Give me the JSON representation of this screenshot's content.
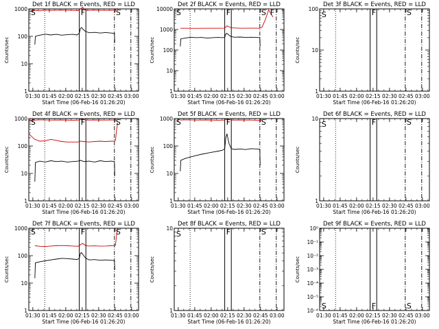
{
  "chart_data": {
    "type": "line",
    "x_ticks": [
      "01:30",
      "01:45",
      "02:00",
      "02:15",
      "02:30",
      "02:45",
      "03:00"
    ],
    "xlabel": "Start Time (06-Feb-16 01:26:20)",
    "ylabel": "Counts/sec",
    "y_scale": "log",
    "marker_times_min": {
      "dotted": 14.5,
      "solid_1": 46,
      "solid_2": 52,
      "dash_1": 78,
      "dash_2": 93
    },
    "panels": [
      {
        "title": "Det 1f BLACK = Events, RED = LLD",
        "ylim": [
          1,
          1000
        ],
        "y_ticks": [
          "1",
          "10",
          "100",
          "1000"
        ],
        "flags": [
          {
            "label": "S",
            "t": 1.5
          },
          {
            "label": "F",
            "t": 47
          },
          {
            "label": "S",
            "t": 79
          }
        ],
        "series": [
          {
            "color": "#cc0000",
            "t": [
              0,
              5,
              10,
              15,
              20,
              30,
              40,
              45,
              47,
              49,
              52,
              60,
              70,
              78,
              79,
              80,
              81
            ],
            "v": [
              800,
              880,
              850,
              900,
              880,
              900,
              880,
              860,
              1000,
              1150,
              880,
              900,
              880,
              890,
              900,
              1000,
              1050
            ]
          },
          {
            "color": "#000000",
            "t": [
              5.5,
              6,
              10,
              15,
              20,
              25,
              30,
              35,
              40,
              44,
              46,
              47,
              48,
              50,
              52,
              55,
              60,
              65,
              70,
              75,
              78,
              78.3
            ],
            "v": [
              50,
              100,
              110,
              120,
              112,
              118,
              110,
              115,
              118,
              112,
              130,
              190,
              210,
              170,
              150,
              135,
              140,
              132,
              138,
              132,
              128,
              60
            ]
          }
        ]
      },
      {
        "title": "Det 2f BLACK = Events, RED = LLD",
        "ylim": [
          1,
          10000
        ],
        "y_ticks": [
          "1",
          "10",
          "100",
          "1000",
          "10000"
        ],
        "flags": [
          {
            "label": "S",
            "t": 1.5
          },
          {
            "label": "F",
            "t": 47
          },
          {
            "label": "S",
            "t": 79
          },
          {
            "label": "F",
            "t": 87
          }
        ],
        "series": [
          {
            "color": "#cc0000",
            "t": [
              5.5,
              10,
              20,
              30,
              40,
              46,
              48,
              52,
              60,
              70,
              78,
              80,
              83,
              86,
              88,
              90
            ],
            "v": [
              1150,
              1150,
              1140,
              1150,
              1150,
              1160,
              1500,
              1200,
              1150,
              1160,
              1150,
              1300,
              3000,
              9000,
              6000,
              4000
            ]
          },
          {
            "color": "#000000",
            "t": [
              5.5,
              6,
              10,
              15,
              20,
              25,
              30,
              35,
              40,
              44,
              46,
              47,
              48,
              50,
              52,
              55,
              60,
              65,
              70,
              75,
              78,
              78.3
            ],
            "v": [
              150,
              350,
              380,
              420,
              400,
              410,
              380,
              400,
              410,
              400,
              420,
              600,
              650,
              520,
              450,
              420,
              430,
              410,
              420,
              410,
              400,
              150
            ]
          }
        ]
      },
      {
        "title": "Det 3f BLACK = Events, RED = LLD",
        "ylim": [
          1,
          100
        ],
        "y_ticks": [
          "1",
          "10",
          "100"
        ],
        "flags": [
          {
            "label": "S",
            "t": 1.5
          },
          {
            "label": "F",
            "t": 47
          },
          {
            "label": "S",
            "t": 79
          }
        ],
        "series": []
      },
      {
        "title": "Det 4f BLACK = Events, RED = LLD",
        "ylim": [
          1,
          1000
        ],
        "y_ticks": [
          "1",
          "10",
          "100",
          "1000"
        ],
        "flags": [
          {
            "label": "S",
            "t": 1.5
          },
          {
            "label": "F",
            "t": 47
          },
          {
            "label": "S",
            "t": 79
          }
        ],
        "series": [
          {
            "color": "#cc0000",
            "t": [
              0,
              5,
              10,
              15,
              20,
              25,
              30,
              35,
              40,
              45,
              47,
              50,
              55,
              60,
              65,
              70,
              75,
              78,
              79,
              80,
              81
            ],
            "v": [
              280,
              180,
              150,
              155,
              175,
              160,
              145,
              140,
              140,
              140,
              150,
              145,
              140,
              145,
              150,
              145,
              150,
              150,
              160,
              400,
              700
            ]
          },
          {
            "color": "#cc0000",
            "t": [
              0,
              10,
              20,
              30,
              40,
              46,
              48,
              52,
              60,
              70,
              78,
              80
            ],
            "v": [
              850,
              900,
              880,
              890,
              870,
              880,
              950,
              880,
              890,
              880,
              890,
              900
            ]
          },
          {
            "color": "#000000",
            "t": [
              5.5,
              6,
              10,
              15,
              20,
              25,
              30,
              35,
              40,
              45,
              47,
              50,
              55,
              60,
              65,
              70,
              75,
              78,
              78.3
            ],
            "v": [
              5,
              25,
              28,
              26,
              29,
              27,
              28,
              26,
              27,
              28,
              30,
              27,
              28,
              26,
              29,
              27,
              28,
              27,
              8
            ]
          }
        ]
      },
      {
        "title": "Det 5f BLACK = Events, RED = LLD",
        "ylim": [
          1,
          1000
        ],
        "y_ticks": [
          "1",
          "10",
          "100",
          "1000"
        ],
        "flags": [
          {
            "label": "S",
            "t": 1.5
          },
          {
            "label": "F",
            "t": 47
          },
          {
            "label": "S",
            "t": 79
          }
        ],
        "series": [
          {
            "color": "#cc0000",
            "t": [
              5.5,
              10,
              20,
              30,
              40,
              46,
              48,
              52,
              60,
              70,
              78,
              80
            ],
            "v": [
              880,
              900,
              880,
              890,
              870,
              880,
              950,
              880,
              890,
              880,
              860,
              900
            ]
          },
          {
            "color": "#000000",
            "t": [
              5.5,
              6,
              10,
              15,
              20,
              25,
              30,
              35,
              40,
              44,
              46,
              47,
              48,
              50,
              52,
              55,
              60,
              65,
              70,
              75,
              78,
              78.3
            ],
            "v": [
              12,
              30,
              35,
              40,
              45,
              50,
              55,
              60,
              65,
              70,
              80,
              200,
              280,
              120,
              80,
              75,
              78,
              74,
              80,
              78,
              76,
              20
            ]
          }
        ]
      },
      {
        "title": "Det 6f BLACK = Events, RED = LLD",
        "ylim": [
          1,
          10
        ],
        "y_ticks": [
          "1",
          "10"
        ],
        "flags": [
          {
            "label": "S",
            "t": 1.5
          },
          {
            "label": "F",
            "t": 47
          },
          {
            "label": "S",
            "t": 79
          }
        ],
        "series": []
      },
      {
        "title": "Det 7f BLACK = Events, RED = LLD",
        "ylim": [
          1,
          1000
        ],
        "y_ticks": [
          "1",
          "10",
          "100",
          "1000"
        ],
        "flags": [
          {
            "label": "S",
            "t": 1.5
          },
          {
            "label": "F",
            "t": 47
          },
          {
            "label": "S",
            "t": 79
          }
        ],
        "series": [
          {
            "color": "#cc0000",
            "t": [
              5.5,
              10,
              15,
              20,
              25,
              30,
              35,
              40,
              45,
              47,
              49,
              52,
              55,
              60,
              65,
              70,
              75,
              78,
              79,
              80,
              81
            ],
            "v": [
              230,
              220,
              215,
              225,
              230,
              235,
              230,
              225,
              220,
              250,
              280,
              230,
              225,
              228,
              222,
              225,
              230,
              235,
              240,
              600,
              1000
            ]
          },
          {
            "color": "#000000",
            "t": [
              5.5,
              6,
              10,
              15,
              20,
              25,
              30,
              35,
              40,
              44,
              46,
              47,
              48,
              50,
              52,
              55,
              60,
              65,
              70,
              75,
              78,
              78.3
            ],
            "v": [
              15,
              55,
              60,
              65,
              70,
              75,
              80,
              78,
              75,
              72,
              80,
              120,
              130,
              100,
              80,
              70,
              72,
              68,
              70,
              68,
              66,
              30
            ]
          }
        ]
      },
      {
        "title": "Det 8f BLACK = Events, RED = LLD",
        "ylim": [
          1,
          10
        ],
        "y_ticks": [
          "1",
          "10"
        ],
        "flags": [
          {
            "label": "S",
            "t": 1.5
          },
          {
            "label": "F",
            "t": 47
          },
          {
            "label": "S",
            "t": 79
          }
        ],
        "series": []
      },
      {
        "title": "Det 9f BLACK = Events, RED = LLD",
        "ylim": [
          1e-06,
          1
        ],
        "y_ticks": [
          "10⁻⁶",
          "10⁻⁵",
          "10⁻⁴",
          "10⁻³",
          "10⁻²",
          "10⁻¹",
          "10⁰"
        ],
        "flags": [
          {
            "label": "S",
            "t": 1.5
          },
          {
            "label": "F",
            "t": 47
          },
          {
            "label": "S",
            "t": 79
          }
        ],
        "series": []
      }
    ]
  }
}
